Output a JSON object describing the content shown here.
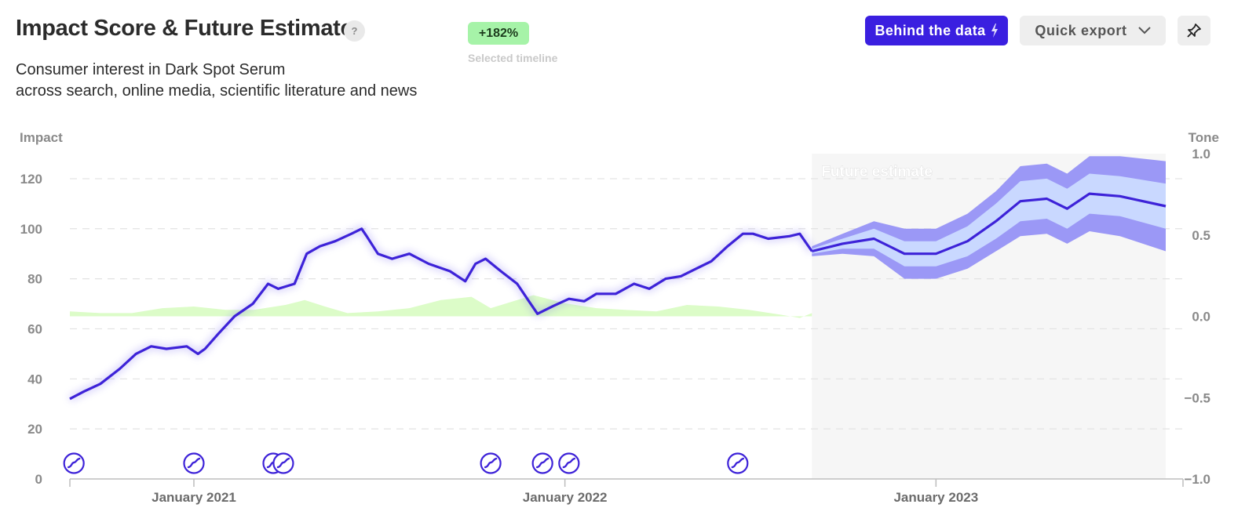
{
  "header": {
    "title": "Impact Score & Future Estimate",
    "help_label": "?",
    "subtitle_line1": "Consumer interest in Dark Spot Serum",
    "subtitle_line2": "across search, online media, scientific literature and news",
    "change_badge": "+182%",
    "change_caption": "Selected timeline"
  },
  "toolbar": {
    "behind_label": "Behind the data",
    "export_label": "Quick export",
    "icons": [
      "lightning-icon",
      "chevron-down-icon",
      "pin-icon"
    ]
  },
  "colors": {
    "accent": "#3a1fe0",
    "line": "#3d22d8",
    "band_outer": "#9b98f6",
    "band_inner": "#c9d8ff",
    "tone_fill": "#dcfcc8",
    "badge_bg": "#a6f3a8",
    "future_bg": "#f6f6f6"
  },
  "chart_data": {
    "type": "line",
    "x_axis": {
      "type": "date",
      "range": [
        "2020-09-01",
        "2023-09-01"
      ],
      "tick_labels": [
        "January 2021",
        "January 2022",
        "January 2023"
      ],
      "tick_dates": [
        "2021-01-01",
        "2022-01-01",
        "2023-01-01"
      ]
    },
    "y_axis_left": {
      "label": "Impact",
      "range": [
        0,
        130
      ],
      "ticks": [
        0,
        20,
        40,
        60,
        80,
        100,
        120
      ]
    },
    "y_axis_right": {
      "label": "Tone",
      "range": [
        -1.0,
        1.0
      ],
      "ticks": [
        "1.0",
        "0.5",
        "0.0",
        "−0.5",
        "−1.0"
      ]
    },
    "grid": true,
    "future_label": "Future estimate",
    "future_start": "2022-09-01",
    "future_end": "2023-08-15",
    "series": [
      {
        "kind": "impact",
        "points": [
          [
            "2020-09-01",
            32
          ],
          [
            "2020-09-15",
            35
          ],
          [
            "2020-10-01",
            38
          ],
          [
            "2020-10-20",
            44
          ],
          [
            "2020-11-05",
            50
          ],
          [
            "2020-11-20",
            53
          ],
          [
            "2020-12-05",
            52
          ],
          [
            "2020-12-25",
            53
          ],
          [
            "2021-01-05",
            50
          ],
          [
            "2021-01-12",
            52
          ],
          [
            "2021-01-25",
            58
          ],
          [
            "2021-02-10",
            65
          ],
          [
            "2021-02-28",
            70
          ],
          [
            "2021-03-15",
            78
          ],
          [
            "2021-03-25",
            76
          ],
          [
            "2021-04-10",
            78
          ],
          [
            "2021-04-22",
            90
          ],
          [
            "2021-05-05",
            93
          ],
          [
            "2021-05-20",
            95
          ],
          [
            "2021-06-05",
            98
          ],
          [
            "2021-06-15",
            100
          ],
          [
            "2021-06-20",
            97
          ],
          [
            "2021-07-01",
            90
          ],
          [
            "2021-07-15",
            88
          ],
          [
            "2021-08-01",
            90
          ],
          [
            "2021-08-20",
            86
          ],
          [
            "2021-09-10",
            83
          ],
          [
            "2021-09-25",
            79
          ],
          [
            "2021-10-05",
            86
          ],
          [
            "2021-10-15",
            88
          ],
          [
            "2021-10-30",
            83
          ],
          [
            "2021-11-15",
            78
          ],
          [
            "2021-11-25",
            72
          ],
          [
            "2021-12-05",
            66
          ],
          [
            "2021-12-20",
            69
          ],
          [
            "2022-01-05",
            72
          ],
          [
            "2022-01-20",
            71
          ],
          [
            "2022-02-01",
            74
          ],
          [
            "2022-02-20",
            74
          ],
          [
            "2022-03-10",
            78
          ],
          [
            "2022-03-25",
            76
          ],
          [
            "2022-04-10",
            80
          ],
          [
            "2022-04-25",
            81
          ],
          [
            "2022-05-10",
            84
          ],
          [
            "2022-05-25",
            87
          ],
          [
            "2022-06-10",
            93
          ],
          [
            "2022-06-25",
            98
          ],
          [
            "2022-07-05",
            98
          ],
          [
            "2022-07-20",
            96
          ],
          [
            "2022-08-10",
            97
          ],
          [
            "2022-08-20",
            98
          ],
          [
            "2022-09-01",
            91
          ]
        ]
      },
      {
        "kind": "estimate",
        "points": [
          [
            "2022-09-01",
            91
          ],
          [
            "2022-10-01",
            94
          ],
          [
            "2022-11-01",
            96
          ],
          [
            "2022-12-01",
            90
          ],
          [
            "2023-01-01",
            90
          ],
          [
            "2023-02-01",
            95
          ],
          [
            "2023-03-01",
            103
          ],
          [
            "2023-03-25",
            111
          ],
          [
            "2023-04-20",
            112
          ],
          [
            "2023-05-10",
            108
          ],
          [
            "2023-06-01",
            114
          ],
          [
            "2023-07-01",
            113
          ],
          [
            "2023-08-15",
            109
          ]
        ],
        "band_inner_halfwidth": [
          1,
          2,
          4,
          5,
          5,
          6,
          7,
          8,
          8,
          8,
          8,
          8,
          9
        ],
        "band_outer_halfwidth": [
          2,
          4,
          7,
          10,
          10,
          11,
          12,
          14,
          14,
          14,
          15,
          16,
          18
        ]
      },
      {
        "kind": "tone",
        "points": [
          [
            "2020-09-01",
            0.03
          ],
          [
            "2020-10-01",
            0.02
          ],
          [
            "2020-11-01",
            0.02
          ],
          [
            "2020-12-01",
            0.05
          ],
          [
            "2021-01-01",
            0.06
          ],
          [
            "2021-02-01",
            0.04
          ],
          [
            "2021-03-01",
            0.04
          ],
          [
            "2021-04-01",
            0.07
          ],
          [
            "2021-04-20",
            0.1
          ],
          [
            "2021-05-10",
            0.06
          ],
          [
            "2021-06-01",
            0.02
          ],
          [
            "2021-07-01",
            0.03
          ],
          [
            "2021-08-01",
            0.05
          ],
          [
            "2021-09-01",
            0.1
          ],
          [
            "2021-10-01",
            0.12
          ],
          [
            "2021-10-20",
            0.05
          ],
          [
            "2021-11-10",
            0.09
          ],
          [
            "2021-12-01",
            0.13
          ],
          [
            "2022-01-01",
            0.08
          ],
          [
            "2022-02-01",
            0.05
          ],
          [
            "2022-03-01",
            0.04
          ],
          [
            "2022-04-01",
            0.03
          ],
          [
            "2022-05-01",
            0.07
          ],
          [
            "2022-06-01",
            0.06
          ],
          [
            "2022-07-01",
            0.04
          ],
          [
            "2022-08-01",
            0.01
          ],
          [
            "2022-08-20",
            -0.01
          ],
          [
            "2022-09-01",
            0.02
          ]
        ]
      }
    ],
    "event_marker_dates": [
      "2020-09-05",
      "2021-01-01",
      "2021-03-20",
      "2021-03-30",
      "2021-10-20",
      "2021-12-10",
      "2022-01-05",
      "2022-06-20"
    ]
  }
}
